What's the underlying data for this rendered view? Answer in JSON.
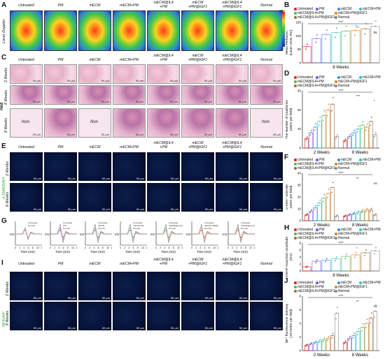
{
  "panel_letters": {
    "A": "A",
    "B": "B",
    "C": "C",
    "D": "D",
    "E": "E",
    "F": "F",
    "G": "G",
    "H": "H",
    "I": "I",
    "J": "J"
  },
  "groups": {
    "g1": "Untreated",
    "g2": "PM",
    "g3": "mECM",
    "g4": "mECM+PM",
    "g5": "mECM@IL4\n+PM",
    "g6": "mECM\n+PM@IGF1",
    "g7": "mECM@IL4\n+PM@IGF1",
    "g8": "Normal"
  },
  "rows": {
    "laser": "Laser Doppler",
    "he": "H&E",
    "he_2w": "2 Weeks",
    "he_8w": "8 Weeks",
    "e_marker": "α-SMA/DAPI",
    "i_marker": "NF/DAPI",
    "w2": "2 Weeks",
    "w8": "8 Weeks"
  },
  "non_label": "Non",
  "scale": {
    "um50": "50 μm"
  },
  "colorbar": {
    "max": "200",
    "min": "0"
  },
  "legend": {
    "untreated": "Untreated",
    "pm": "PM",
    "mecm": "mECM",
    "mecm_pm": "mECM+PM",
    "il4_pm": "mECM@IL4+PM",
    "pm_igf1": "mECM+PM@IGF1",
    "il4_igf1": "mECM@IL4+PM@IGF1",
    "normal": "Normal"
  },
  "colors": {
    "untreated": "#e0191e",
    "pm": "#7a4fd6",
    "mecm": "#2b8fe6",
    "mecm_pm": "#29c2c4",
    "il4_pm": "#4fb84a",
    "pm_igf1": "#f07d1c",
    "il4_igf1": "#9a6b3a",
    "normal": "#8a8a8a"
  },
  "charts": {
    "B": {
      "ylabel": "Mean Perfusion\n(Laser Units, RC)",
      "xlabel": "8 Weeks",
      "yticks": [
        "150",
        "100",
        "50",
        "0"
      ],
      "sig": "****",
      "sig2": "**",
      "sig3": "ns"
    },
    "D": {
      "ylabel": "The Number of Capillaries\n(400X per field)",
      "xlabels": [
        "2 Weeks",
        "8 Weeks"
      ],
      "yticks": [
        "30",
        "20",
        "10",
        "0"
      ],
      "sig": "****",
      "sig2": "***",
      "sig3": "*"
    },
    "F": {
      "ylabel": "α-SMA⁺ arteriole\n(400X per field)",
      "xlabels": [
        "2 Weeks",
        "8 Weeks"
      ],
      "yticks": [
        "40",
        "30",
        "20",
        "10",
        "0"
      ],
      "sig": "****",
      "sig2": "**",
      "sig3": "ns"
    },
    "H": {
      "ylabel": "CMAP maximum amplitude\n(mV)",
      "xlabel": "8 Weeks",
      "yticks": [
        "8",
        "6",
        "4",
        "2",
        "0"
      ],
      "sig": "****",
      "sig2": "*"
    },
    "J": {
      "ylabel": "NF⁺ fluorescence intensity\n(10⁴/400X per field)",
      "xlabels": [
        "2 Weeks",
        "8 Weeks"
      ],
      "yticks": [
        "8",
        "6",
        "4",
        "2",
        "0"
      ],
      "sig": "****",
      "sig2": "**",
      "sig3": "ns"
    }
  },
  "chart_data": [
    {
      "type": "scatter",
      "title": "",
      "ylabel": "Mean Perfusion (Laser Units, RC)",
      "xlabel": "8 Weeks",
      "ylim": [
        0,
        150
      ],
      "series": [
        {
          "name": "Untreated",
          "values": [
            60
          ]
        },
        {
          "name": "PM",
          "values": [
            90
          ]
        },
        {
          "name": "mECM",
          "values": [
            105
          ]
        },
        {
          "name": "mECM+PM",
          "values": [
            112
          ]
        },
        {
          "name": "mECM@IL4+PM",
          "values": [
            118
          ]
        },
        {
          "name": "mECM+PM@IGF1",
          "values": [
            120
          ]
        },
        {
          "name": "mECM@IL4+PM@IGF1",
          "values": [
            126
          ]
        },
        {
          "name": "Normal",
          "values": [
            135
          ]
        }
      ]
    },
    {
      "type": "bar",
      "ylabel": "The Number of Capillaries (400X per field)",
      "categories": [
        "2 Weeks",
        "8 Weeks"
      ],
      "ylim": [
        0,
        30
      ],
      "series": [
        {
          "name": "Untreated",
          "values": [
            5,
            4
          ]
        },
        {
          "name": "PM",
          "values": [
            8,
            6
          ]
        },
        {
          "name": "mECM",
          "values": [
            11,
            8
          ]
        },
        {
          "name": "mECM+PM",
          "values": [
            14,
            10
          ]
        },
        {
          "name": "mECM@IL4+PM",
          "values": [
            17,
            12
          ]
        },
        {
          "name": "mECM+PM@IGF1",
          "values": [
            20,
            11
          ]
        },
        {
          "name": "mECM@IL4+PM@IGF1",
          "values": [
            23,
            14
          ]
        },
        {
          "name": "Normal",
          "values": [
            6,
            7
          ]
        }
      ]
    },
    {
      "type": "bar",
      "ylabel": "α-SMA⁺ arteriole (400X per field)",
      "categories": [
        "2 Weeks",
        "8 Weeks"
      ],
      "ylim": [
        0,
        40
      ],
      "series": [
        {
          "name": "Untreated",
          "values": [
            5,
            4
          ]
        },
        {
          "name": "PM",
          "values": [
            8,
            5
          ]
        },
        {
          "name": "mECM",
          "values": [
            11,
            6
          ]
        },
        {
          "name": "mECM+PM",
          "values": [
            15,
            7
          ]
        },
        {
          "name": "mECM@IL4+PM",
          "values": [
            19,
            8
          ]
        },
        {
          "name": "mECM+PM@IGF1",
          "values": [
            23,
            9
          ]
        },
        {
          "name": "mECM@IL4+PM@IGF1",
          "values": [
            28,
            9
          ]
        },
        {
          "name": "Normal",
          "values": [
            4,
            5
          ]
        }
      ]
    },
    {
      "type": "scatter",
      "ylabel": "CMAP maximum amplitude (mV)",
      "xlabel": "8 Weeks",
      "ylim": [
        0,
        8
      ],
      "series": [
        {
          "name": "Untreated",
          "values": [
            1.2
          ]
        },
        {
          "name": "PM",
          "values": [
            2.8
          ]
        },
        {
          "name": "mECM",
          "values": [
            3.1
          ]
        },
        {
          "name": "mECM+PM",
          "values": [
            3.5
          ]
        },
        {
          "name": "mECM@IL4+PM",
          "values": [
            4.2
          ]
        },
        {
          "name": "mECM+PM@IGF1",
          "values": [
            4.6
          ]
        },
        {
          "name": "mECM@IL4+PM@IGF1",
          "values": [
            5.2
          ]
        },
        {
          "name": "Normal",
          "values": [
            5.8
          ]
        }
      ]
    },
    {
      "type": "bar",
      "ylabel": "NF⁺ fluorescence intensity (10⁴/400X per field)",
      "categories": [
        "2 Weeks",
        "8 Weeks"
      ],
      "ylim": [
        0,
        8
      ],
      "series": [
        {
          "name": "Untreated",
          "values": [
            0.8,
            1.2
          ]
        },
        {
          "name": "PM",
          "values": [
            1.0,
            1.8
          ]
        },
        {
          "name": "mECM",
          "values": [
            1.2,
            2.2
          ]
        },
        {
          "name": "mECM+PM",
          "values": [
            1.4,
            2.8
          ]
        },
        {
          "name": "mECM@IL4+PM",
          "values": [
            1.6,
            3.4
          ]
        },
        {
          "name": "mECM+PM@IGF1",
          "values": [
            1.8,
            4.0
          ]
        },
        {
          "name": "mECM@IL4+PM@IGF1",
          "values": [
            2.2,
            4.8
          ]
        },
        {
          "name": "Normal",
          "values": [
            5.5,
            5.8
          ]
        }
      ]
    }
  ],
  "emg": {
    "ylab": "mV",
    "xlab": "Time (mS)",
    "xticks": [
      "0",
      "2",
      "4",
      "6",
      "8",
      "10",
      "12"
    ],
    "normal_legend": "Normal"
  }
}
